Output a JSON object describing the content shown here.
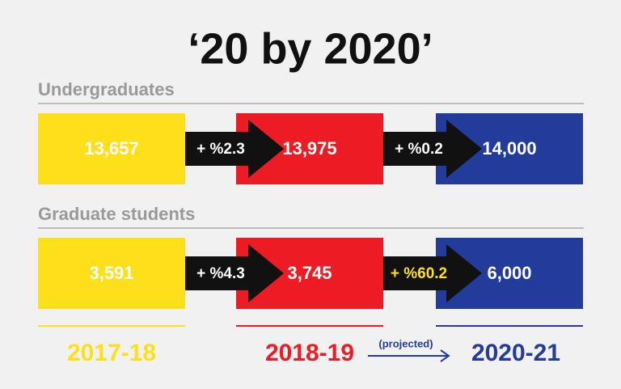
{
  "title": "‘20 by 2020’",
  "sections": [
    {
      "label": "Undergraduates",
      "values": [
        "13,657",
        "13,975",
        "14,000"
      ],
      "changes": [
        "+ %2.3",
        "+ %0.2"
      ]
    },
    {
      "label": "Graduate students",
      "values": [
        "3,591",
        "3,745",
        "6,000"
      ],
      "changes": [
        "+ %4.3",
        "+ %60.2"
      ]
    }
  ],
  "years": [
    "2017-18",
    "2018-19",
    "2020-21"
  ],
  "note": "(projected)"
}
